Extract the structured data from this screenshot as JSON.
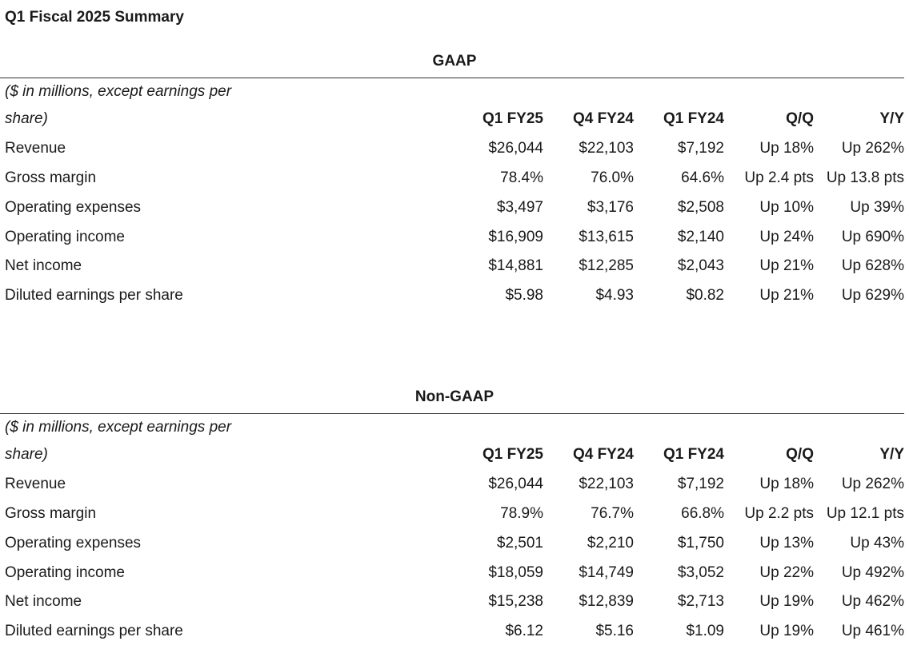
{
  "title": "Q1 Fiscal 2025 Summary",
  "sections": [
    {
      "heading": "GAAP",
      "note": "($ in millions, except earnings per share)",
      "columns": [
        "Q1 FY25",
        "Q4 FY24",
        "Q1 FY24",
        "Q/Q",
        "Y/Y"
      ],
      "rows": [
        {
          "label": "Revenue",
          "cells": [
            "$26,044",
            "$22,103",
            "$7,192",
            "Up 18%",
            "Up 262%"
          ]
        },
        {
          "label": "Gross margin",
          "cells": [
            "78.4%",
            "76.0%",
            "64.6%",
            "Up 2.4 pts",
            "Up 13.8 pts"
          ]
        },
        {
          "label": "Operating expenses",
          "cells": [
            "$3,497",
            "$3,176",
            "$2,508",
            "Up 10%",
            "Up 39%"
          ]
        },
        {
          "label": "Operating income",
          "cells": [
            "$16,909",
            "$13,615",
            "$2,140",
            "Up 24%",
            "Up 690%"
          ]
        },
        {
          "label": "Net income",
          "cells": [
            "$14,881",
            "$12,285",
            "$2,043",
            "Up 21%",
            "Up 628%"
          ]
        },
        {
          "label": "Diluted earnings per share",
          "cells": [
            "$5.98",
            "$4.93",
            "$0.82",
            "Up 21%",
            "Up 629%"
          ]
        }
      ]
    },
    {
      "heading": "Non-GAAP",
      "note": "($ in millions, except earnings per share)",
      "columns": [
        "Q1 FY25",
        "Q4 FY24",
        "Q1 FY24",
        "Q/Q",
        "Y/Y"
      ],
      "rows": [
        {
          "label": "Revenue",
          "cells": [
            "$26,044",
            "$22,103",
            "$7,192",
            "Up 18%",
            "Up 262%"
          ]
        },
        {
          "label": "Gross margin",
          "cells": [
            "78.9%",
            "76.7%",
            "66.8%",
            "Up 2.2 pts",
            "Up 12.1 pts"
          ]
        },
        {
          "label": "Operating expenses",
          "cells": [
            "$2,501",
            "$2,210",
            "$1,750",
            "Up 13%",
            "Up 43%"
          ]
        },
        {
          "label": "Operating income",
          "cells": [
            "$18,059",
            "$14,749",
            "$3,052",
            "Up 22%",
            "Up 492%"
          ]
        },
        {
          "label": "Net income",
          "cells": [
            "$15,238",
            "$12,839",
            "$2,713",
            "Up 19%",
            "Up 462%"
          ]
        },
        {
          "label": "Diluted earnings per share",
          "cells": [
            "$6.12",
            "$5.16",
            "$1.09",
            "Up 19%",
            "Up 461%"
          ]
        }
      ]
    }
  ]
}
